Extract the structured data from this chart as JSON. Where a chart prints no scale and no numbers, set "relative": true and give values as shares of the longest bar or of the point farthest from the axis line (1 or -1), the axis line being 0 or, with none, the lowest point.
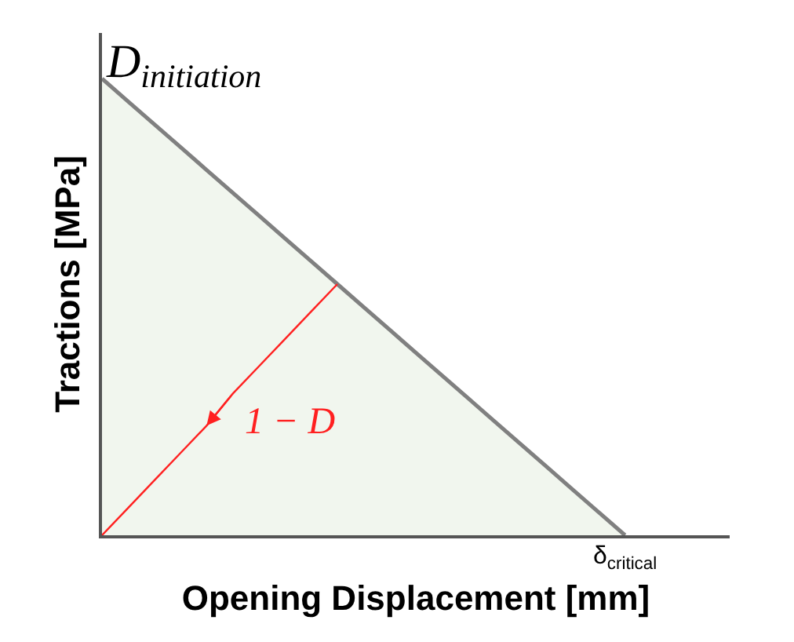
{
  "chart_data": {
    "type": "area",
    "relative": true,
    "xlabel": "Opening Displacement [mm]",
    "ylabel": "Tractions [MPa]",
    "categories": [
      null,
      null,
      null,
      null,
      null,
      null,
      null,
      null,
      null,
      null,
      null,
      null,
      null,
      null,
      null,
      null,
      null,
      null,
      null,
      null,
      null,
      null,
      null,
      null,
      null
    ],
    "series": [
      {
        "color": "#808080",
        "values": [
          1,
          0.95,
          0.9,
          0.85,
          0.8,
          0.75,
          0.7,
          0.65,
          0.6,
          0.55,
          0.5,
          0.45,
          0.4,
          0.35,
          0.3,
          0.25,
          0.2,
          0.15,
          0.1,
          0.05,
          0,
          null,
          null,
          null,
          null
        ]
      },
      {
        "type": "line",
        "color": "#ff2020",
        "values": [
          0,
          0.06,
          0.12,
          0.18,
          0.24,
          0.31,
          0.37,
          0.43,
          0.49,
          0.55,
          null,
          null,
          null,
          null,
          null,
          null,
          null,
          null,
          null,
          null,
          null,
          null,
          null,
          null,
          null
        ]
      }
    ],
    "annotations": [
      "D$_{initiation}$",
      "1 − D",
      "δ$_{critical}$"
    ]
  }
}
